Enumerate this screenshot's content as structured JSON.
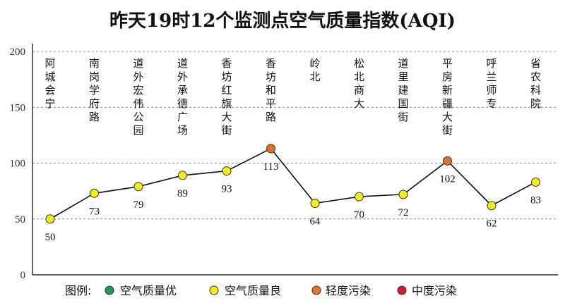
{
  "chart_data": {
    "type": "line",
    "title": "昨天19时12个监测点空气质量指数(AQI)",
    "categories": [
      "阿城会宁",
      "南岗学府路",
      "道外宏伟公园",
      "道外承德广场",
      "香坊红旗大街",
      "香坊和平路",
      "岭北",
      "松北商大",
      "道里建国街",
      "平房新疆大街",
      "呼兰师专",
      "省农科院"
    ],
    "values": [
      50,
      73,
      79,
      89,
      93,
      113,
      64,
      70,
      72,
      102,
      62,
      83
    ],
    "point_levels": [
      "良",
      "良",
      "良",
      "良",
      "良",
      "轻度污染",
      "良",
      "良",
      "良",
      "轻度污染",
      "良",
      "良"
    ],
    "ylim": [
      0,
      200
    ],
    "yticks": [
      0,
      50,
      100,
      150,
      200
    ],
    "grid": true,
    "xlabel": "",
    "ylabel": "",
    "legend": {
      "prefix": "图例:",
      "placement": "bottom",
      "items": [
        {
          "key": "优",
          "label": "空气质量优",
          "color": "#1e9a5a"
        },
        {
          "key": "良",
          "label": "空气质量良",
          "color": "#f4ec14"
        },
        {
          "key": "轻度污染",
          "label": "轻度污染",
          "color": "#e0722a"
        },
        {
          "key": "中度污染",
          "label": "中度污染",
          "color": "#d8182a"
        }
      ]
    }
  }
}
